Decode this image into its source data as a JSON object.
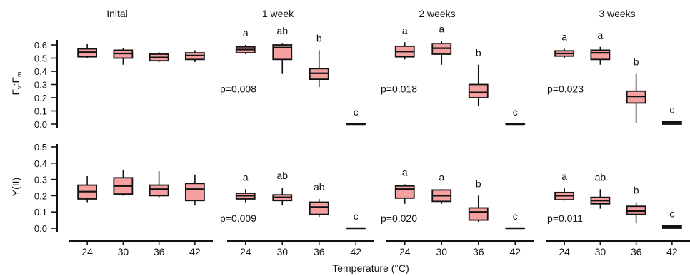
{
  "chart_data": {
    "type": "box",
    "xlabel": "Temperature (°C)",
    "categories": [
      "24",
      "30",
      "36",
      "42"
    ],
    "timepoints": [
      "Inital",
      "1 week",
      "2 weeks",
      "3 weeks"
    ],
    "box_color": "#f4a0a0",
    "rows": [
      {
        "ylabel": "Fv:Fm",
        "ylim": [
          0,
          0.65
        ],
        "yticks": [
          0.0,
          0.1,
          0.2,
          0.3,
          0.4,
          0.5,
          0.6
        ],
        "ytick_labels": [
          "0.0",
          "0.1",
          "0.2",
          "0.3",
          "0.4",
          "0.5",
          "0.6"
        ],
        "panels": [
          {
            "pvalue": "",
            "letters": [
              "",
              "",
              "",
              ""
            ],
            "boxes": [
              {
                "min": 0.5,
                "q1": 0.51,
                "median": 0.545,
                "q3": 0.57,
                "max": 0.61
              },
              {
                "min": 0.45,
                "q1": 0.5,
                "median": 0.535,
                "q3": 0.56,
                "max": 0.575
              },
              {
                "min": 0.47,
                "q1": 0.48,
                "median": 0.505,
                "q3": 0.53,
                "max": 0.545
              },
              {
                "min": 0.47,
                "q1": 0.49,
                "median": 0.52,
                "q3": 0.54,
                "max": 0.56
              }
            ]
          },
          {
            "pvalue": "p=0.008",
            "letters": [
              "a",
              "ab",
              "b",
              "c"
            ],
            "boxes": [
              {
                "min": 0.53,
                "q1": 0.54,
                "median": 0.565,
                "q3": 0.585,
                "max": 0.6
              },
              {
                "min": 0.38,
                "q1": 0.49,
                "median": 0.58,
                "q3": 0.6,
                "max": 0.615
              },
              {
                "min": 0.28,
                "q1": 0.34,
                "median": 0.385,
                "q3": 0.42,
                "max": 0.56
              },
              {
                "min": 0.0,
                "q1": 0.0,
                "median": 0.0,
                "q3": 0.0,
                "max": 0.0
              }
            ]
          },
          {
            "pvalue": "p=0.018",
            "letters": [
              "a",
              "a",
              "b",
              "c"
            ],
            "boxes": [
              {
                "min": 0.49,
                "q1": 0.51,
                "median": 0.55,
                "q3": 0.59,
                "max": 0.62
              },
              {
                "min": 0.45,
                "q1": 0.53,
                "median": 0.575,
                "q3": 0.61,
                "max": 0.63
              },
              {
                "min": 0.14,
                "q1": 0.2,
                "median": 0.24,
                "q3": 0.3,
                "max": 0.45
              },
              {
                "min": 0.0,
                "q1": 0.0,
                "median": 0.0,
                "q3": 0.0,
                "max": 0.0
              }
            ]
          },
          {
            "pvalue": "p=0.023",
            "letters": [
              "a",
              "a",
              "b",
              "c"
            ],
            "boxes": [
              {
                "min": 0.5,
                "q1": 0.515,
                "median": 0.535,
                "q3": 0.555,
                "max": 0.57
              },
              {
                "min": 0.45,
                "q1": 0.49,
                "median": 0.54,
                "q3": 0.56,
                "max": 0.585
              },
              {
                "min": 0.01,
                "q1": 0.16,
                "median": 0.21,
                "q3": 0.25,
                "max": 0.38
              },
              {
                "min": 0.0,
                "q1": 0.0,
                "median": 0.01,
                "q3": 0.02,
                "max": 0.02
              }
            ]
          }
        ]
      },
      {
        "ylabel": "Y(II)",
        "ylim": [
          0,
          0.52
        ],
        "yticks": [
          0.0,
          0.1,
          0.2,
          0.3,
          0.4,
          0.5
        ],
        "ytick_labels": [
          "0.0",
          "0.1",
          "0.2",
          "0.3",
          "0.4",
          "0.5"
        ],
        "panels": [
          {
            "pvalue": "",
            "letters": [
              "",
              "",
              "",
              ""
            ],
            "boxes": [
              {
                "min": 0.16,
                "q1": 0.18,
                "median": 0.225,
                "q3": 0.265,
                "max": 0.32
              },
              {
                "min": 0.2,
                "q1": 0.21,
                "median": 0.26,
                "q3": 0.31,
                "max": 0.36
              },
              {
                "min": 0.19,
                "q1": 0.2,
                "median": 0.24,
                "q3": 0.265,
                "max": 0.35
              },
              {
                "min": 0.14,
                "q1": 0.17,
                "median": 0.24,
                "q3": 0.275,
                "max": 0.33
              }
            ]
          },
          {
            "pvalue": "p=0.009",
            "letters": [
              "a",
              "ab",
              "ab",
              "c"
            ],
            "boxes": [
              {
                "min": 0.16,
                "q1": 0.18,
                "median": 0.2,
                "q3": 0.215,
                "max": 0.24
              },
              {
                "min": 0.14,
                "q1": 0.17,
                "median": 0.19,
                "q3": 0.205,
                "max": 0.25
              },
              {
                "min": 0.07,
                "q1": 0.085,
                "median": 0.13,
                "q3": 0.16,
                "max": 0.18
              },
              {
                "min": 0.0,
                "q1": 0.0,
                "median": 0.0,
                "q3": 0.0,
                "max": 0.0
              }
            ]
          },
          {
            "pvalue": "p=0.020",
            "letters": [
              "a",
              "a",
              "b",
              "c"
            ],
            "boxes": [
              {
                "min": 0.15,
                "q1": 0.185,
                "median": 0.24,
                "q3": 0.26,
                "max": 0.27
              },
              {
                "min": 0.15,
                "q1": 0.165,
                "median": 0.2,
                "q3": 0.235,
                "max": 0.24
              },
              {
                "min": 0.04,
                "q1": 0.05,
                "median": 0.1,
                "q3": 0.125,
                "max": 0.2
              },
              {
                "min": 0.0,
                "q1": 0.0,
                "median": 0.0,
                "q3": 0.0,
                "max": 0.0
              }
            ]
          },
          {
            "pvalue": "p=0.011",
            "letters": [
              "a",
              "ab",
              "b",
              "c"
            ],
            "boxes": [
              {
                "min": 0.17,
                "q1": 0.175,
                "median": 0.2,
                "q3": 0.22,
                "max": 0.245
              },
              {
                "min": 0.12,
                "q1": 0.15,
                "median": 0.17,
                "q3": 0.19,
                "max": 0.24
              },
              {
                "min": 0.03,
                "q1": 0.085,
                "median": 0.105,
                "q3": 0.135,
                "max": 0.16
              },
              {
                "min": 0.0,
                "q1": 0.0,
                "median": 0.008,
                "q3": 0.015,
                "max": 0.015
              }
            ]
          }
        ]
      }
    ]
  }
}
